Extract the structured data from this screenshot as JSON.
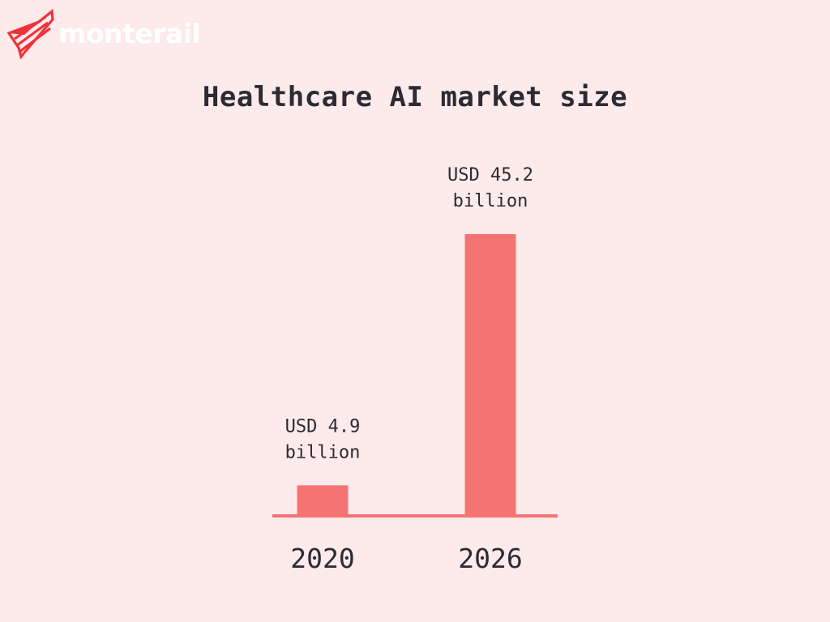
{
  "brand": {
    "name": "monterail",
    "logo_icon": "monterail-wing-icon",
    "logo_color": "#f0323c",
    "text_color": "#ffffff"
  },
  "colors": {
    "background": "#fdeaea",
    "bar": "#f57373",
    "baseline": "#f57373",
    "text": "#2b2b33"
  },
  "chart_data": {
    "type": "bar",
    "title": "Healthcare AI market size",
    "categories": [
      "2020",
      "2026"
    ],
    "values": [
      4.9,
      45.2
    ],
    "unit": "USD billion",
    "data_labels": [
      [
        "USD 4.9",
        "billion"
      ],
      [
        "USD 45.2",
        "billion"
      ]
    ],
    "xlabel": "",
    "ylabel": "",
    "grid": false,
    "legend": "none"
  }
}
